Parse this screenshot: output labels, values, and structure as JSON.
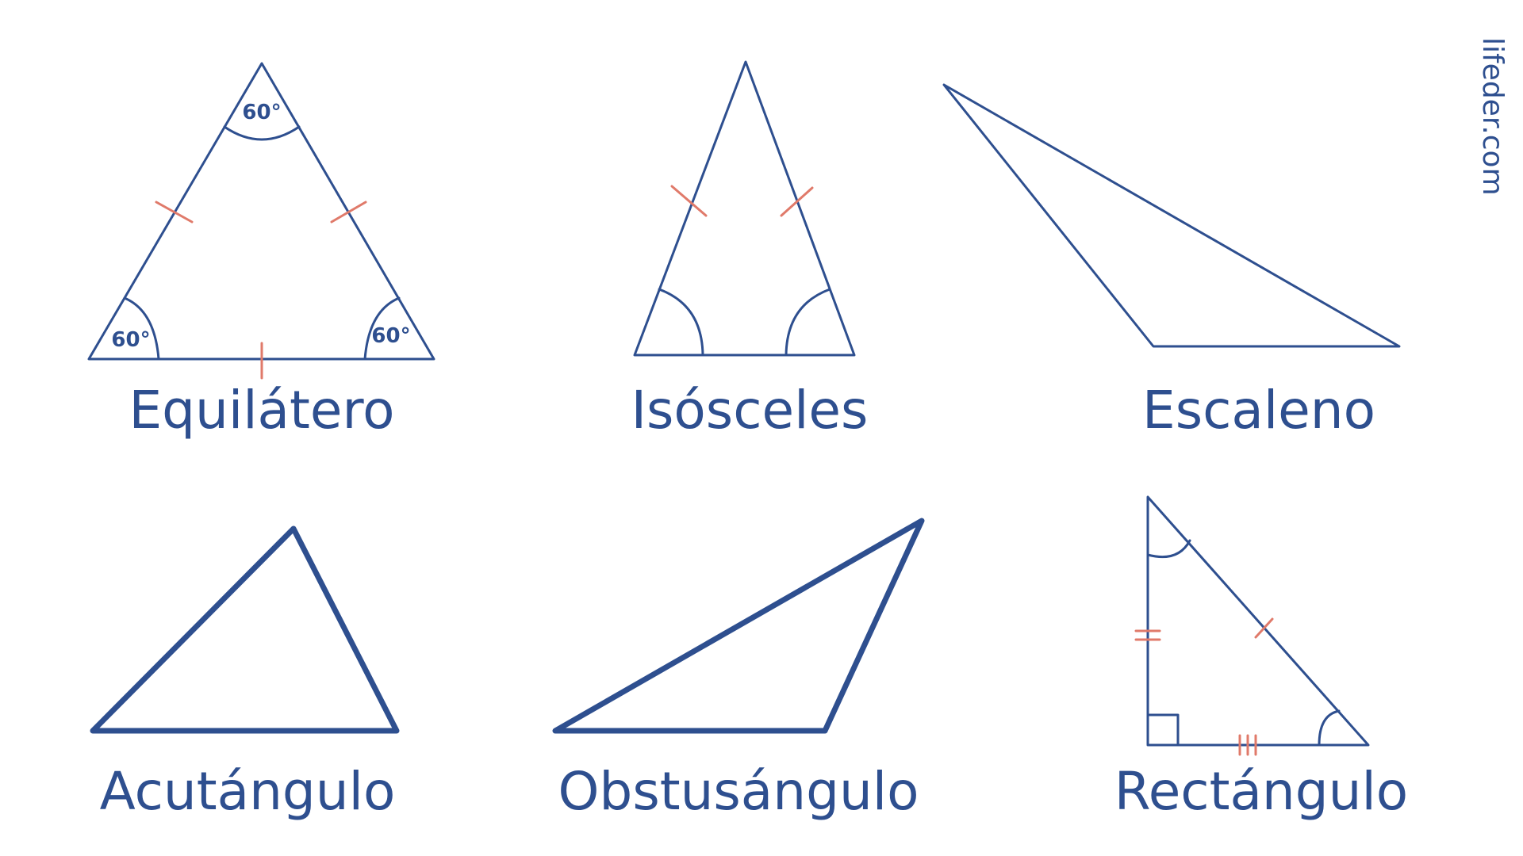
{
  "colors": {
    "stroke": "#2e4f8f",
    "tick": "#e07a6a",
    "background": "#ffffff"
  },
  "brand": {
    "text": "lifeder.com"
  },
  "angle_label": "60°",
  "triangles": {
    "equilatero": {
      "label": "Equilátero"
    },
    "isosceles": {
      "label": "Isósceles"
    },
    "escaleno": {
      "label": "Escaleno"
    },
    "acutangulo": {
      "label": "Acutángulo"
    },
    "obtusangulo": {
      "label": "Obstusángulo"
    },
    "rectangulo": {
      "label": "Rectángulo"
    }
  }
}
